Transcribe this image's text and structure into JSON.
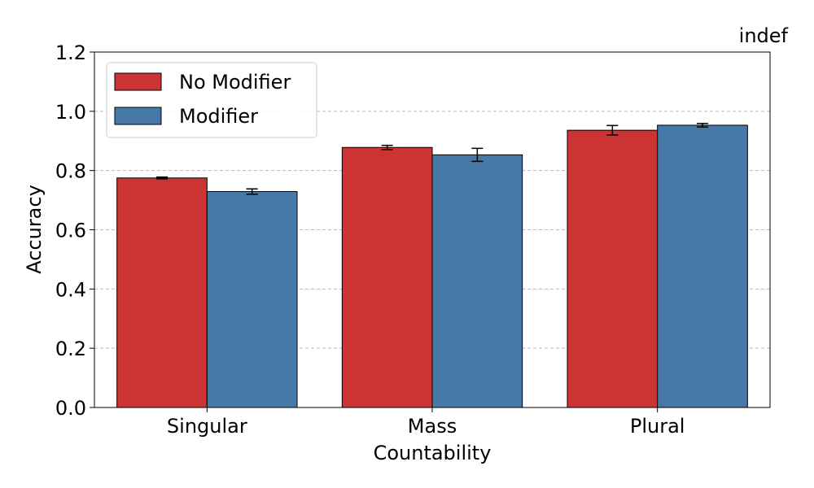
{
  "chart_data": {
    "type": "bar",
    "title": "indef",
    "xlabel": "Countability",
    "ylabel": "Accuracy",
    "categories": [
      "Singular",
      "Mass",
      "Plural"
    ],
    "ylim": [
      0,
      1.2
    ],
    "yticks": [
      "0.0",
      "0.2",
      "0.4",
      "0.6",
      "0.8",
      "1.0",
      "1.2"
    ],
    "grid": "y-dashed",
    "legend_position": "top-left",
    "series": [
      {
        "name": "No Modifier",
        "color": "#cc3333",
        "values": [
          0.775,
          0.878,
          0.936
        ],
        "errors": [
          0.003,
          0.007,
          0.016
        ]
      },
      {
        "name": "Modifier",
        "color": "#4679a8",
        "values": [
          0.729,
          0.853,
          0.953
        ],
        "errors": [
          0.009,
          0.022,
          0.006
        ]
      }
    ]
  }
}
